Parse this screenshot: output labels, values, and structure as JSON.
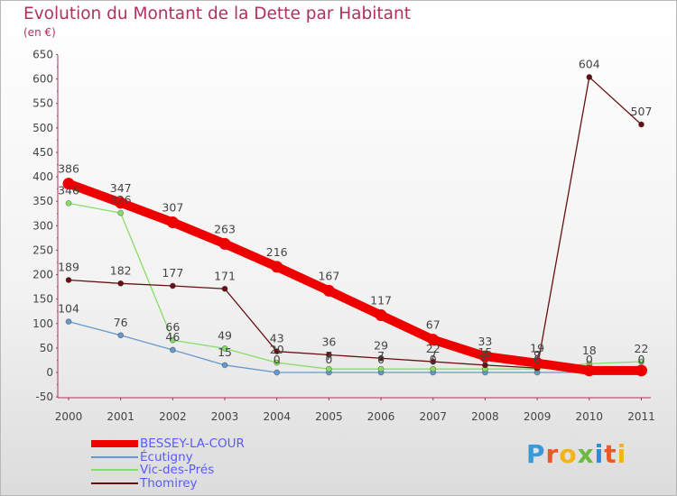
{
  "title": "Evolution du Montant de la Dette par Habitant",
  "unit": "(en €)",
  "brand": {
    "text": "Proxiti",
    "colors": [
      "#3a9ad9",
      "#e85a2a",
      "#f2b31b",
      "#6dbb3e",
      "#2a8fd0",
      "#e85a2a",
      "#f2b31b"
    ]
  },
  "chart_data": {
    "type": "line",
    "x": [
      "2000",
      "2001",
      "2002",
      "2003",
      "2004",
      "2005",
      "2006",
      "2007",
      "2008",
      "2009",
      "2010",
      "2011"
    ],
    "ylim": [
      -50,
      650
    ],
    "yticks": [
      -50,
      0,
      50,
      100,
      150,
      200,
      250,
      300,
      350,
      400,
      450,
      500,
      550,
      600,
      650
    ],
    "grid": false,
    "legend_position": "bottom-left",
    "series": [
      {
        "name": "BESSEY-LA-COUR",
        "color": "#ee0000",
        "values": [
          386,
          347,
          307,
          263,
          216,
          167,
          117,
          67,
          33,
          19,
          4,
          4
        ],
        "labels": [
          "386",
          "347",
          "307",
          "263",
          "216",
          "167",
          "117",
          "67",
          "33",
          "19",
          "",
          ""
        ]
      },
      {
        "name": "Écutigny",
        "color": "#6699cc",
        "values": [
          104,
          76,
          46,
          15,
          0,
          0,
          0,
          0,
          0,
          0,
          0,
          0
        ],
        "labels": [
          "104",
          "76",
          "46",
          "15",
          "0",
          "0",
          "0",
          "0",
          "0",
          "0",
          "0",
          "0"
        ]
      },
      {
        "name": "Vic-des-Prés",
        "color": "#88dd66",
        "values": [
          346,
          326,
          66,
          49,
          20,
          7,
          7,
          7,
          7,
          7,
          18,
          22
        ],
        "labels": [
          "346",
          "326",
          "66",
          "49",
          "20",
          "7",
          "7",
          "7",
          "7",
          "7",
          "18",
          "22"
        ]
      },
      {
        "name": "Thomirey",
        "color": "#661111",
        "values": [
          189,
          182,
          177,
          171,
          43,
          36,
          29,
          22,
          15,
          9,
          604,
          507
        ],
        "labels": [
          "189",
          "182",
          "177",
          "171",
          "43",
          "36",
          "29",
          "22",
          "15",
          "9",
          "604",
          "507"
        ]
      }
    ]
  }
}
